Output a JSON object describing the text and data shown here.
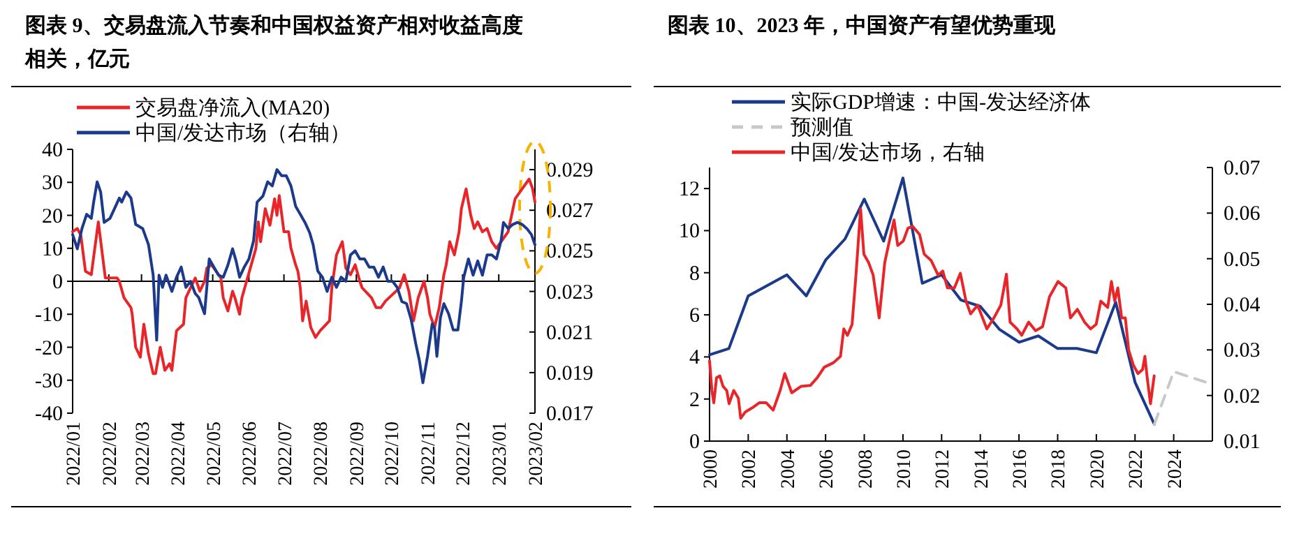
{
  "chart_data": [
    {
      "type": "line",
      "title": "图表 9、交易盘流入节奏和中国权益资产相对收益高度相关，亿元",
      "legend": "top",
      "xlim": [
        "2022-01-01",
        "2023-02-01"
      ],
      "xticks": [
        {
          "value": "2022-01-01",
          "label": "2022/01"
        },
        {
          "value": "2022-02-01",
          "label": "2022/02"
        },
        {
          "value": "2022-03-01",
          "label": "2022/03"
        },
        {
          "value": "2022-04-01",
          "label": "2022/04"
        },
        {
          "value": "2022-05-01",
          "label": "2022/05"
        },
        {
          "value": "2022-06-01",
          "label": "2022/06"
        },
        {
          "value": "2022-07-01",
          "label": "2022/07"
        },
        {
          "value": "2022-08-01",
          "label": "2022/08"
        },
        {
          "value": "2022-09-01",
          "label": "2022/09"
        },
        {
          "value": "2022-10-01",
          "label": "2022/10"
        },
        {
          "value": "2022-11-01",
          "label": "2022/11"
        },
        {
          "value": "2022-12-01",
          "label": "2022/12"
        },
        {
          "value": "2023-01-01",
          "label": "2023/01"
        },
        {
          "value": "2023-02-01",
          "label": "2023/02"
        }
      ],
      "ylim": [
        -40,
        40
      ],
      "yticks": [
        -40,
        -30,
        -20,
        -10,
        0,
        10,
        20,
        30,
        40
      ],
      "y2lim": [
        0.017,
        0.03
      ],
      "y2ticks": [
        0.017,
        0.019,
        0.021,
        0.023,
        0.025,
        0.027,
        0.029
      ],
      "series": [
        {
          "name": "交易盘净流入(MA20)",
          "color": "#e8262a",
          "x": [
            "2022-01-01",
            "2022-01-05",
            "2022-01-08",
            "2022-01-12",
            "2022-01-17",
            "2022-01-23",
            "2022-01-29",
            "2022-02-08",
            "2022-02-10",
            "2022-02-14",
            "2022-02-20",
            "2022-02-21",
            "2022-02-24",
            "2022-02-28",
            "2022-03-03",
            "2022-03-07",
            "2022-03-11",
            "2022-03-13",
            "2022-03-17",
            "2022-03-21",
            "2022-03-25",
            "2022-03-27",
            "2022-03-31",
            "2022-04-06",
            "2022-04-08",
            "2022-04-12",
            "2022-04-16",
            "2022-04-20",
            "2022-04-24",
            "2022-04-26",
            "2022-04-30",
            "2022-05-04",
            "2022-05-08",
            "2022-05-10",
            "2022-05-14",
            "2022-05-18",
            "2022-05-20",
            "2022-05-24",
            "2022-05-26",
            "2022-05-30",
            "2022-06-03",
            "2022-06-07",
            "2022-06-09",
            "2022-06-11",
            "2022-06-15",
            "2022-06-19",
            "2022-06-23",
            "2022-06-25",
            "2022-06-27",
            "2022-07-01",
            "2022-07-05",
            "2022-07-07",
            "2022-07-11",
            "2022-07-13",
            "2022-07-15",
            "2022-07-17",
            "2022-07-20",
            "2022-07-24",
            "2022-07-28",
            "2022-08-01",
            "2022-08-09",
            "2022-08-11",
            "2022-08-15",
            "2022-08-20",
            "2022-08-23",
            "2022-08-27",
            "2022-08-31",
            "2022-09-04",
            "2022-09-06",
            "2022-09-14",
            "2022-09-18",
            "2022-09-22",
            "2022-09-26",
            "2022-10-02",
            "2022-10-08",
            "2022-10-12",
            "2022-10-16",
            "2022-10-20",
            "2022-10-24",
            "2022-10-29",
            "2022-11-01",
            "2022-11-03",
            "2022-11-07",
            "2022-11-11",
            "2022-11-15",
            "2022-11-17",
            "2022-11-20",
            "2022-11-24",
            "2022-11-28",
            "2022-11-30",
            "2022-12-04",
            "2022-12-08",
            "2022-12-11",
            "2022-12-14",
            "2022-12-18",
            "2022-12-22",
            "2022-12-26",
            "2022-12-30",
            "2023-01-03",
            "2023-01-09",
            "2023-01-15",
            "2023-01-21",
            "2023-01-25",
            "2023-01-27",
            "2023-01-30",
            "2023-02-01"
          ],
          "values": [
            15,
            16,
            14,
            3,
            2,
            18,
            1,
            1,
            0,
            -5,
            -8,
            -10,
            -20,
            -23,
            -13,
            -22,
            -28,
            -28,
            -20,
            -27,
            -25,
            -27,
            -15,
            -13,
            -5,
            -2,
            1,
            -3,
            0,
            4,
            5,
            3,
            1,
            -5,
            -9,
            -3,
            -5,
            -10,
            -5,
            0,
            5,
            10,
            18,
            12,
            22,
            17,
            25,
            20,
            26,
            15,
            15,
            10,
            5,
            3,
            -2,
            -12,
            -6,
            -14,
            -17,
            -15,
            -12,
            -2,
            8,
            12,
            4,
            2,
            5,
            0,
            -2,
            -5,
            -8,
            -8,
            -6,
            -4,
            -2,
            2,
            -3,
            -12,
            -5,
            0,
            -5,
            -10,
            -14,
            -8,
            2,
            5,
            12,
            8,
            15,
            22,
            28,
            20,
            16,
            18,
            15,
            16,
            12,
            10,
            12,
            15,
            25,
            28,
            30,
            31,
            28,
            24
          ]
        },
        {
          "name": "中国/发达市场（右轴）",
          "color": "#1b3a8c",
          "axis": "y2",
          "x": [
            "2022-01-01",
            "2022-01-05",
            "2022-01-09",
            "2022-01-13",
            "2022-01-17",
            "2022-01-19",
            "2022-01-22",
            "2022-01-25",
            "2022-01-28",
            "2022-02-02",
            "2022-02-06",
            "2022-02-10",
            "2022-02-12",
            "2022-02-16",
            "2022-02-20",
            "2022-02-24",
            "2022-03-02",
            "2022-03-07",
            "2022-03-11",
            "2022-03-14",
            "2022-03-16",
            "2022-03-19",
            "2022-03-22",
            "2022-03-27",
            "2022-03-31",
            "2022-04-04",
            "2022-04-08",
            "2022-04-12",
            "2022-04-16",
            "2022-04-19",
            "2022-04-24",
            "2022-04-28",
            "2022-05-02",
            "2022-05-06",
            "2022-05-10",
            "2022-05-14",
            "2022-05-18",
            "2022-05-21",
            "2022-05-24",
            "2022-05-28",
            "2022-06-01",
            "2022-06-05",
            "2022-06-08",
            "2022-06-13",
            "2022-06-17",
            "2022-06-21",
            "2022-06-25",
            "2022-06-29",
            "2022-07-03",
            "2022-07-07",
            "2022-07-11",
            "2022-07-15",
            "2022-07-19",
            "2022-07-23",
            "2022-07-26",
            "2022-07-30",
            "2022-08-03",
            "2022-08-07",
            "2022-08-11",
            "2022-08-15",
            "2022-08-19",
            "2022-08-23",
            "2022-08-27",
            "2022-08-31",
            "2022-09-04",
            "2022-09-08",
            "2022-09-12",
            "2022-09-16",
            "2022-09-20",
            "2022-09-24",
            "2022-09-28",
            "2022-10-02",
            "2022-10-06",
            "2022-10-10",
            "2022-10-14",
            "2022-10-18",
            "2022-10-22",
            "2022-10-25",
            "2022-10-28",
            "2022-11-01",
            "2022-11-05",
            "2022-11-07",
            "2022-11-09",
            "2022-11-12",
            "2022-11-15",
            "2022-11-19",
            "2022-11-23",
            "2022-11-27",
            "2022-11-30",
            "2022-12-02",
            "2022-12-06",
            "2022-12-10",
            "2022-12-14",
            "2022-12-18",
            "2022-12-22",
            "2022-12-26",
            "2022-12-30",
            "2023-01-03",
            "2023-01-05",
            "2023-01-09",
            "2023-01-13",
            "2023-01-17",
            "2023-01-21",
            "2023-01-25",
            "2023-01-29",
            "2023-02-01"
          ],
          "values": [
            0.0258,
            0.0251,
            0.0261,
            0.0268,
            0.0266,
            0.0274,
            0.0284,
            0.0279,
            0.0264,
            0.0266,
            0.0271,
            0.0276,
            0.0274,
            0.0279,
            0.0276,
            0.0263,
            0.0261,
            0.0253,
            0.0238,
            0.0206,
            0.0238,
            0.0232,
            0.0238,
            0.023,
            0.0237,
            0.0242,
            0.0232,
            0.0235,
            0.0229,
            0.0227,
            0.0219,
            0.0246,
            0.0242,
            0.0238,
            0.0237,
            0.0243,
            0.0251,
            0.0245,
            0.0237,
            0.0242,
            0.0246,
            0.0255,
            0.0274,
            0.0277,
            0.0284,
            0.0282,
            0.029,
            0.0287,
            0.0287,
            0.0282,
            0.0272,
            0.0268,
            0.0264,
            0.0259,
            0.0253,
            0.024,
            0.0237,
            0.023,
            0.0237,
            0.0232,
            0.0237,
            0.0235,
            0.0248,
            0.025,
            0.0246,
            0.0246,
            0.0242,
            0.0242,
            0.0237,
            0.0242,
            0.0235,
            0.0235,
            0.0232,
            0.0225,
            0.0224,
            0.0216,
            0.0204,
            0.0196,
            0.0185,
            0.0198,
            0.0214,
            0.0212,
            0.0198,
            0.0217,
            0.0224,
            0.0219,
            0.0211,
            0.0211,
            0.0225,
            0.0237,
            0.0246,
            0.0238,
            0.0245,
            0.0238,
            0.0248,
            0.0248,
            0.0246,
            0.0255,
            0.0264,
            0.0261,
            0.0263,
            0.0264,
            0.0263,
            0.0261,
            0.0258,
            0.0253
          ]
        }
      ]
    },
    {
      "type": "line",
      "title": "图表 10、2023 年，中国资产有望优势重现",
      "legend": "top",
      "xlim": [
        2000,
        2026
      ],
      "xticks": [
        2000,
        2002,
        2004,
        2006,
        2008,
        2010,
        2012,
        2014,
        2016,
        2018,
        2020,
        2022,
        2024
      ],
      "ylim": [
        0,
        13
      ],
      "yticks": [
        0,
        2,
        4,
        6,
        8,
        10,
        12
      ],
      "y2lim": [
        0.01,
        0.07
      ],
      "y2ticks": [
        0.01,
        0.02,
        0.03,
        0.04,
        0.05,
        0.06,
        0.07
      ],
      "series": [
        {
          "name": "实际GDP增速：中国-发达经济体",
          "color": "#1b3a8c",
          "x": [
            2000,
            2001,
            2002,
            2004,
            2005,
            2006,
            2007,
            2008,
            2009,
            2010,
            2011,
            2012,
            2013,
            2014,
            2015,
            2016,
            2017,
            2018,
            2019,
            2020,
            2021,
            2022,
            2023
          ],
          "values": [
            4.1,
            4.4,
            6.9,
            7.9,
            6.9,
            8.6,
            9.6,
            11.5,
            9.5,
            12.5,
            7.5,
            7.9,
            6.7,
            6.4,
            5.3,
            4.7,
            5.0,
            4.4,
            4.4,
            4.2,
            6.6,
            2.8,
            0.8
          ]
        },
        {
          "name": "预测值",
          "color": "#c8c8c8",
          "line_style": "dashed",
          "x": [
            2023,
            2024,
            2026
          ],
          "values": [
            0.8,
            3.3,
            2.7
          ]
        },
        {
          "name": "中国/发达市场，右轴",
          "color": "#e8262a",
          "axis": "y2",
          "x": [
            2000.0,
            2000.12,
            2000.22,
            2000.36,
            2000.53,
            2000.7,
            2000.89,
            2001.01,
            2001.25,
            2001.49,
            2001.61,
            2001.85,
            2002.21,
            2002.57,
            2002.93,
            2003.29,
            2003.65,
            2003.89,
            2004.25,
            2004.73,
            2005.21,
            2005.57,
            2005.93,
            2006.41,
            2006.77,
            2006.94,
            2007.13,
            2007.37,
            2007.57,
            2007.81,
            2007.98,
            2008.22,
            2008.46,
            2008.77,
            2009.06,
            2009.3,
            2009.54,
            2009.73,
            2010.02,
            2010.26,
            2010.5,
            2010.86,
            2011.1,
            2011.46,
            2011.82,
            2012.06,
            2012.3,
            2012.66,
            2012.97,
            2013.26,
            2013.5,
            2013.86,
            2014.34,
            2014.7,
            2015.06,
            2015.35,
            2015.54,
            2015.9,
            2016.14,
            2016.5,
            2016.86,
            2017.22,
            2017.58,
            2018.02,
            2018.42,
            2018.66,
            2019.02,
            2019.39,
            2019.7,
            2019.99,
            2020.23,
            2020.59,
            2020.78,
            2020.95,
            2021.11,
            2021.31,
            2021.5,
            2021.67,
            2021.91,
            2022.15,
            2022.39,
            2022.51,
            2022.63,
            2022.8,
            2022.99
          ],
          "values": [
            0.0276,
            0.0211,
            0.0184,
            0.0239,
            0.0243,
            0.022,
            0.0211,
            0.0182,
            0.0211,
            0.0194,
            0.015,
            0.0164,
            0.0173,
            0.0184,
            0.0184,
            0.0168,
            0.0211,
            0.0248,
            0.0206,
            0.022,
            0.0222,
            0.0239,
            0.0262,
            0.0272,
            0.0286,
            0.0346,
            0.0332,
            0.0356,
            0.0464,
            0.0609,
            0.051,
            0.0492,
            0.0464,
            0.037,
            0.0492,
            0.0539,
            0.0585,
            0.0529,
            0.0539,
            0.0567,
            0.0571,
            0.0553,
            0.051,
            0.0496,
            0.0464,
            0.0473,
            0.0436,
            0.0436,
            0.0468,
            0.0407,
            0.0379,
            0.0398,
            0.0346,
            0.037,
            0.0398,
            0.0466,
            0.0361,
            0.0346,
            0.0332,
            0.0361,
            0.0342,
            0.0351,
            0.0417,
            0.045,
            0.0436,
            0.037,
            0.0389,
            0.0361,
            0.0346,
            0.0356,
            0.0407,
            0.0393,
            0.045,
            0.0407,
            0.0436,
            0.037,
            0.037,
            0.03,
            0.0267,
            0.0248,
            0.0257,
            0.0286,
            0.0239,
            0.0182,
            0.0243
          ]
        }
      ]
    }
  ]
}
